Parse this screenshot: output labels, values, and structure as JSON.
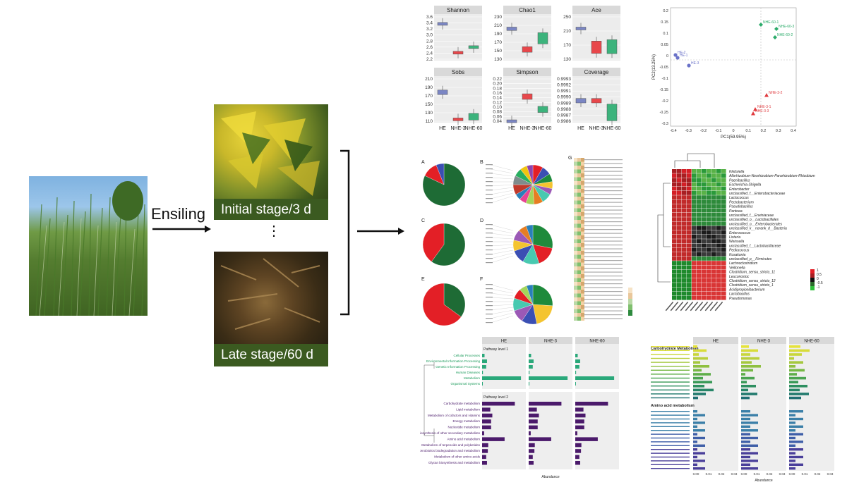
{
  "process": {
    "ensiling_label": "Ensiling",
    "initial_stage_label": "Initial stage/3 d",
    "late_stage_label": "Late stage/60 d",
    "ellipsis": "⋮"
  },
  "alpha_diversity": {
    "groups": [
      "HE",
      "NHE-3",
      "NHE-60"
    ],
    "colors": [
      "#7b86c4",
      "#e8474b",
      "#3cb37c"
    ],
    "panels": [
      {
        "title": "Shannon",
        "ticks": [
          "3.6",
          "3.4",
          "3.2",
          "3.0",
          "2.8",
          "2.6",
          "2.4",
          "2.2"
        ]
      },
      {
        "title": "Chao1",
        "ticks": [
          "230",
          "210",
          "190",
          "170",
          "150",
          "130"
        ]
      },
      {
        "title": "Ace",
        "ticks": [
          "250",
          "210",
          "170",
          "130"
        ]
      },
      {
        "title": "Sobs",
        "ticks": [
          "210",
          "190",
          "170",
          "150",
          "130",
          "110"
        ]
      },
      {
        "title": "Simpson",
        "ticks": [
          "0.22",
          "0.20",
          "0.18",
          "0.16",
          "0.14",
          "0.12",
          "0.10",
          "0.08",
          "0.06",
          "0.04"
        ]
      },
      {
        "title": "Coverage",
        "ticks": [
          "0.9993",
          "0.9992",
          "0.9991",
          "0.9990",
          "0.9989",
          "0.9988",
          "0.9987",
          "0.9986"
        ]
      }
    ]
  },
  "pca": {
    "xlabel": "PC1(59.95%)",
    "ylabel": "PC2(13.25%)",
    "xticks": [
      "-0.4",
      "-0.3",
      "-0.2",
      "-0.1",
      "0",
      "0.1",
      "0.2",
      "0.3",
      "0.4"
    ],
    "yticks": [
      "0.2",
      "0.15",
      "0.1",
      "0.05",
      "0",
      "-0.05",
      "-0.1",
      "-0.15",
      "-0.2",
      "-0.25",
      "-0.3"
    ],
    "points": [
      {
        "label": "NHE-60-1",
        "color": "#2bab6a"
      },
      {
        "label": "NHE-60-3",
        "color": "#2bab6a"
      },
      {
        "label": "NHE-60-2",
        "color": "#2bab6a"
      },
      {
        "label": "HE-2",
        "color": "#6a72c8"
      },
      {
        "label": "HE-1",
        "color": "#6a72c8"
      },
      {
        "label": "HE-3",
        "color": "#6a72c8"
      },
      {
        "label": "NHE-3-2",
        "color": "#e03a3e"
      },
      {
        "label": "NHE-3-1",
        "color": "#e03a3e"
      },
      {
        "label": "NHE-3-3",
        "color": "#e03a3e"
      }
    ]
  },
  "pie_letters": [
    "A",
    "B",
    "C",
    "D",
    "E",
    "F",
    "G"
  ],
  "heatmap_genera": [
    "Klebsiella",
    "Allorhizobium-Neorhizobium-Pararhizobium-Rhizobium",
    "Paenibacillus",
    "Escherichia-Shigella",
    "Enterobacter",
    "unclassified_f__Enterobacteriaceae",
    "Lactococcus",
    "Pectobacterium",
    "Pseudobacillus",
    "Pantoea",
    "unclassified_f__Erwiniaceae",
    "unclassified_o__Lactobacillales",
    "unclassified_o__Enterobacterales",
    "unclassified_k__norank_d__Bacteria",
    "Enterococcus",
    "Listeria",
    "Weissella",
    "unclassified_f__Lactobacillaceae",
    "Pediococcus",
    "Kosakonia",
    "unclassified_p__Firmicutes",
    "Lachnoclostridium",
    "Veillonella",
    "Clostridium_sensu_stricto_11",
    "Leuconostoc",
    "Clostridium_sensu_stricto_12",
    "Clostridium_sensu_stricto_1",
    "Acidipropionibacterium",
    "Lactobacillus",
    "Pseudomonas"
  ],
  "heatmap_legend": [
    "1",
    "0.5",
    "0",
    "-0.5",
    "-1"
  ],
  "functional_bars": {
    "groups": [
      "HE",
      "NHE-3",
      "NHE-60"
    ],
    "level1_label": "Pathway level 1",
    "level2_label": "Pathway level 2",
    "level1": [
      "Cellular Processes",
      "Environmental Information Processing",
      "Genetic Information Processing",
      "Human Diseases",
      "Metabolism",
      "Organismal Systems"
    ],
    "level2": [
      "Carbohydrate metabolism",
      "Lipid metabolism",
      "Metabolism of cofactors and vitamins",
      "Energy metabolism",
      "Nucleotide metabolism",
      "Biosynthesis of other secondary metabolites",
      "Amino acid metabolism",
      "Metabolism of terpenoids and polyketides",
      "Xenobiotics biodegradation and metabolism",
      "Metabolism of other amino acids",
      "Glycan biosynthesis and metabolism"
    ],
    "xlabel": "Abundance"
  },
  "pathway_bars": {
    "groups": [
      "HE",
      "NHE-3",
      "NHE-60"
    ],
    "carb_title": "Carbohydrate Metabolism",
    "amino_title": "Amino acid metabolism",
    "xlabel": "Abundance",
    "xticks": [
      "0.00",
      "0.01",
      "0.02",
      "0.03"
    ]
  }
}
